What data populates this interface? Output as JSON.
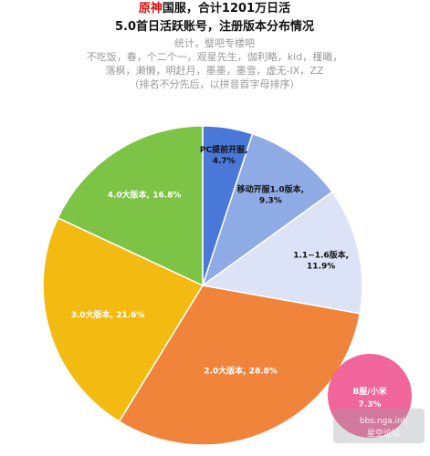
{
  "header": {
    "title_highlight": "原神",
    "title_rest": "国服，合计1201万日活",
    "line2": "5.0首日活跃账号，注册版本分布情况",
    "stat_line": "统计，璧吧专楼吧",
    "names_line1": "不吃饭，春，个二个一，观星先生，伽利略，kid，槿曦，",
    "names_line2": "落枫，濑懒，明赶月，墨墨，墨雪，虚无-IX，ZZ",
    "names_note": "（排名不分先后，以拼音首字母排序）"
  },
  "chart_data": {
    "type": "pie",
    "title": "原神国服，合计1201万日活 5.0首日活跃账号，注册版本分布情况",
    "total_label": "1201万",
    "slices": [
      {
        "label": "PC提前开服",
        "value": 4.7,
        "value_label": "4.7%",
        "color": "#4a78d8",
        "text_color": "#111111"
      },
      {
        "label": "移动开服1.0版本",
        "value": 9.3,
        "value_label": "9.3%",
        "color": "#8fabe6",
        "text_color": "#111111"
      },
      {
        "label": "1.1~1.6版本",
        "value": 11.9,
        "value_label": "11.9%",
        "color": "#dde3f6",
        "text_color": "#111111"
      },
      {
        "label": "2.0大版本",
        "value": 28.8,
        "value_label": "28.8%",
        "color": "#f0843a",
        "text_color": "#ffffff"
      },
      {
        "label": "3.0大版本",
        "value": 21.6,
        "value_label": "21.6%",
        "color": "#f3bb12",
        "text_color": "#ffffff"
      },
      {
        "label": "4.0大版本",
        "value": 16.8,
        "value_label": "16.8%",
        "color": "#7cc346",
        "text_color": "#ffffff"
      }
    ],
    "callout": {
      "label": "B服/小米",
      "value": 7.3,
      "value_label": "7.3%",
      "color": "#f0669a"
    }
  },
  "watermark": {
    "line1": "bbs.nga.ink",
    "line2": "星空论坛"
  }
}
